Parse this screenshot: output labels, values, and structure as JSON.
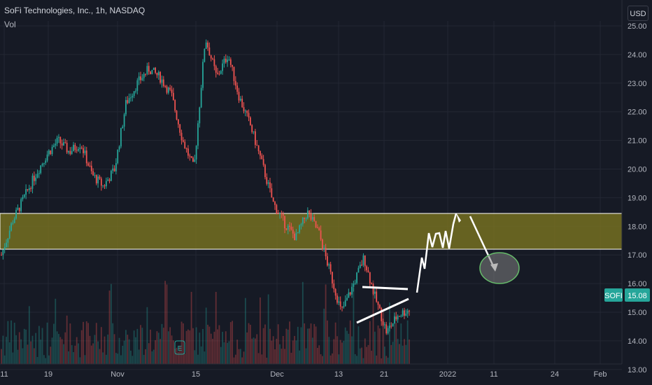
{
  "header": {
    "title": "SoFi Technologies, Inc., 1h, NASDAQ",
    "indicator": "Vol",
    "currency": "USD"
  },
  "chart_data": {
    "type": "line",
    "title": "SoFi Technologies, Inc., 1h, NASDAQ",
    "symbol": "SOFI",
    "last_price": "15.08",
    "ylim": [
      12.7,
      25.2
    ],
    "y_ticks": [
      "25.00",
      "24.00",
      "23.00",
      "22.00",
      "21.00",
      "20.00",
      "19.00",
      "18.00",
      "17.00",
      "16.00",
      "15.00",
      "14.00",
      "13.00"
    ],
    "x_ticks": [
      "11",
      "19",
      "Nov",
      "15",
      "Dec",
      "13",
      "21",
      "2022",
      "11",
      "24",
      "Feb"
    ],
    "x": [
      0,
      2,
      4,
      6,
      8,
      10,
      12,
      14,
      16,
      18,
      20,
      22,
      24,
      26,
      28,
      30,
      32,
      34,
      36,
      38,
      40,
      42,
      44,
      46,
      48,
      50,
      52,
      54,
      56,
      58,
      60,
      62,
      64,
      66,
      68,
      70,
      72
    ],
    "series": [
      {
        "values": [
          17.0,
          18.2,
          19.0,
          19.8,
          20.5,
          21.0,
          20.6,
          20.9,
          19.8,
          19.4,
          20.0,
          22.3,
          23.0,
          23.5,
          23.2,
          22.6,
          21.0,
          20.0,
          24.6,
          23.2,
          24.0,
          22.5,
          21.5,
          20.2,
          18.8,
          18.1,
          17.6,
          18.5,
          17.8,
          16.4,
          15.0,
          15.9,
          16.9,
          15.5,
          14.3,
          14.9,
          15.1
        ]
      }
    ],
    "resistance_zone": [
      17.2,
      18.45
    ],
    "target_ellipse_price": 16.0,
    "colors": {
      "up": "#26a69a",
      "down": "#ef5350",
      "zone": "#7a7420",
      "grid": "#232733",
      "annotation": "#ffffff",
      "price_badge": "#26a69a"
    }
  }
}
